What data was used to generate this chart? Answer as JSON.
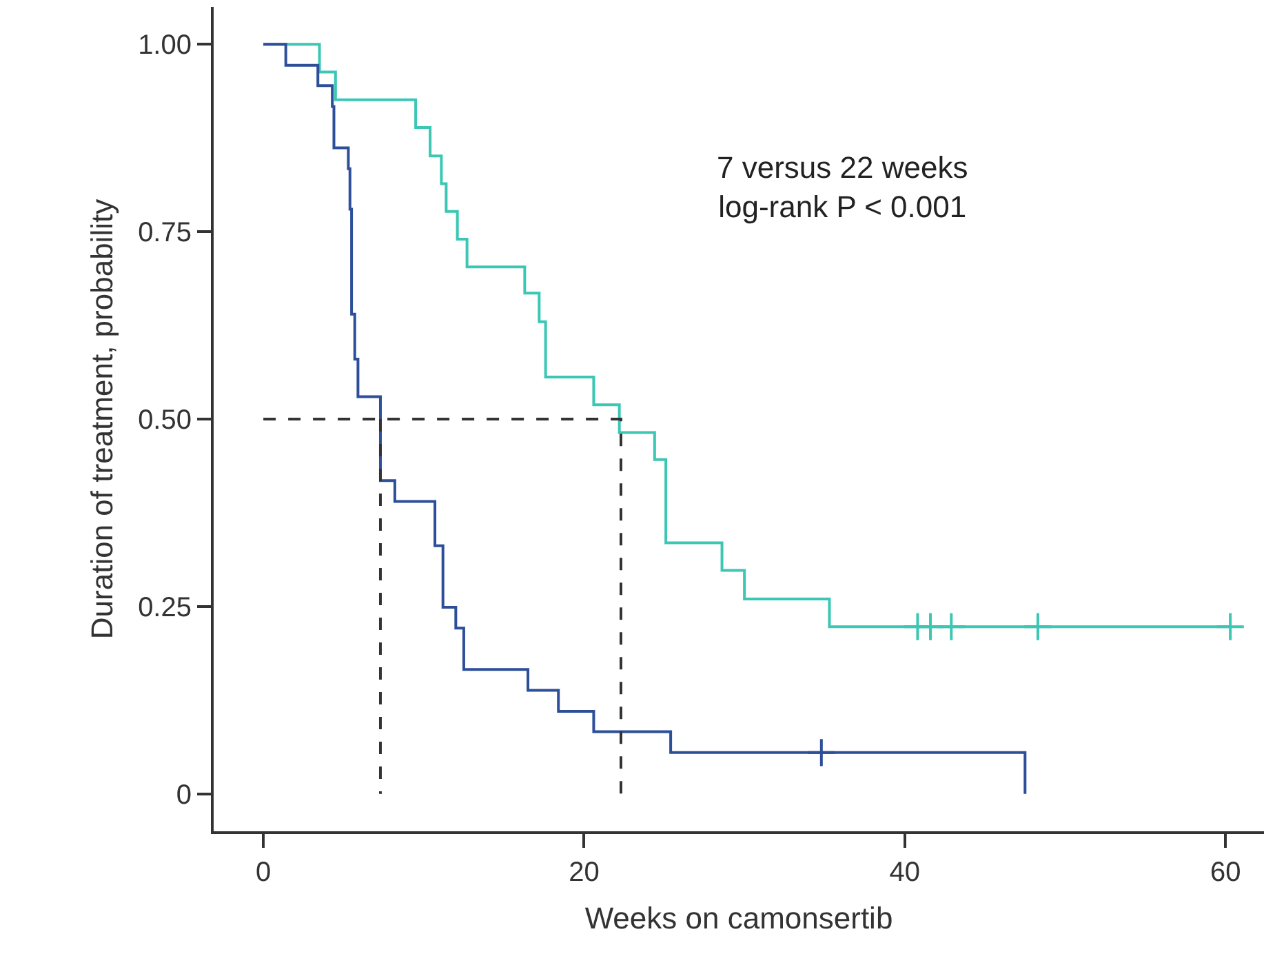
{
  "chart_data": {
    "type": "step",
    "xlabel": "Weeks on camonsertib",
    "ylabel": "Duration of treatment, probability",
    "xlim": [
      -3.1,
      62.4
    ],
    "xticks": [
      0,
      20,
      40,
      60
    ],
    "ylim": [
      -0.05,
      1.05
    ],
    "yticks": [
      {
        "value": 0,
        "label": "0"
      },
      {
        "value": 0.25,
        "label": "0.25"
      },
      {
        "value": 0.5,
        "label": "0.50"
      },
      {
        "value": 0.75,
        "label": "0.75"
      },
      {
        "value": 1,
        "label": "1.00"
      }
    ],
    "annotations": [
      "7 versus 22 weeks\nlog-rank P < 0.001"
    ],
    "series": [
      {
        "color": "#3cc7b4",
        "x": [
          0,
          3.5,
          4.5,
          9.5,
          10.4,
          11.1,
          11.4,
          12.1,
          12.7,
          16.3,
          17.2,
          17.6,
          20.6,
          22.2,
          24.4,
          25.1,
          28.6,
          30.0,
          35.3,
          60.3
        ],
        "values": [
          1.0,
          0.963,
          0.926,
          0.889,
          0.851,
          0.814,
          0.777,
          0.74,
          0.703,
          0.668,
          0.63,
          0.556,
          0.519,
          0.482,
          0.446,
          0.335,
          0.298,
          0.26,
          0.223,
          0.223
        ]
      },
      {
        "color": "#2d4f9a",
        "x": [
          0,
          1.4,
          3.4,
          4.3,
          4.4,
          5.3,
          5.4,
          5.5,
          5.7,
          5.9,
          7.3,
          8.2,
          10.7,
          11.2,
          12.0,
          12.5,
          16.5,
          18.4,
          20.6,
          25.4,
          47.5
        ],
        "values": [
          1.0,
          0.972,
          0.945,
          0.917,
          0.862,
          0.834,
          0.78,
          0.64,
          0.58,
          0.53,
          0.418,
          0.39,
          0.331,
          0.249,
          0.221,
          0.166,
          0.138,
          0.11,
          0.083,
          0.055,
          0.0
        ]
      },
      {
        "type": "scatter",
        "marker": "cross",
        "color": "#3cc7b4",
        "x": [
          40.8,
          41.6,
          42.9,
          48.3,
          60.3
        ],
        "values": [
          0.223,
          0.223,
          0.223,
          0.223,
          0.223
        ]
      },
      {
        "type": "scatter",
        "marker": "cross",
        "color": "#2d4f9a",
        "x": [
          34.8
        ],
        "values": [
          0.055
        ]
      },
      {
        "type": "line",
        "line_style": "dashed",
        "color": "#333333",
        "x": [
          0,
          22.3,
          22.3
        ],
        "values": [
          0.5,
          0.5,
          0
        ]
      },
      {
        "type": "line",
        "line_style": "dashed",
        "color": "#333333",
        "x": [
          7.3,
          7.3
        ],
        "values": [
          0.5,
          0
        ]
      }
    ]
  }
}
